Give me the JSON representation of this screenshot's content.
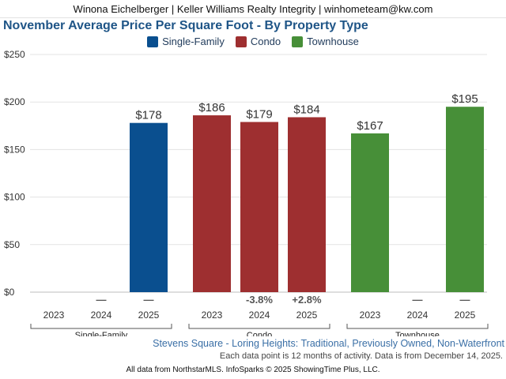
{
  "header": {
    "text": "Winona Eichelberger | Keller Williams Realty Integrity | winhometeam@kw.com"
  },
  "title": "November Average Price Per Square Foot - By Property Type",
  "subtitle": "Stevens Square - Loring Heights: Traditional, Previously Owned, Non-Waterfront",
  "note": "Each data point is 12 months of activity. Data is from December 14, 2025.",
  "footer": "All data from NorthstarMLS. InfoSparks © 2025 ShowingTime Plus, LLC.",
  "legend": [
    {
      "label": "Single-Family",
      "color": "#0a4f8f"
    },
    {
      "label": "Condo",
      "color": "#9e2f30"
    },
    {
      "label": "Townhouse",
      "color": "#478f38"
    }
  ],
  "chart_data": {
    "type": "bar",
    "ylim": [
      0,
      250
    ],
    "yticks": [
      0,
      50,
      100,
      150,
      200,
      250
    ],
    "ytick_labels": [
      "$0",
      "$50",
      "$100",
      "$150",
      "$200",
      "$250"
    ],
    "grid": true,
    "legend_position": "top",
    "groups": [
      {
        "name": "Single-Family",
        "color": "#0a4f8f",
        "years": [
          "2023",
          "2024",
          "2025"
        ],
        "values": [
          null,
          null,
          178
        ],
        "value_labels": [
          "",
          "",
          "$178"
        ],
        "change_labels": [
          "",
          "—",
          "—"
        ]
      },
      {
        "name": "Condo",
        "color": "#9e2f30",
        "years": [
          "2023",
          "2024",
          "2025"
        ],
        "values": [
          186,
          179,
          184
        ],
        "value_labels": [
          "$186",
          "$179",
          "$184"
        ],
        "change_labels": [
          "",
          "-3.8%",
          "+2.8%"
        ]
      },
      {
        "name": "Townhouse",
        "color": "#478f38",
        "years": [
          "2023",
          "2024",
          "2025"
        ],
        "values": [
          167,
          null,
          195
        ],
        "value_labels": [
          "$167",
          "",
          "$195"
        ],
        "change_labels": [
          "",
          "—",
          "—"
        ]
      }
    ]
  }
}
